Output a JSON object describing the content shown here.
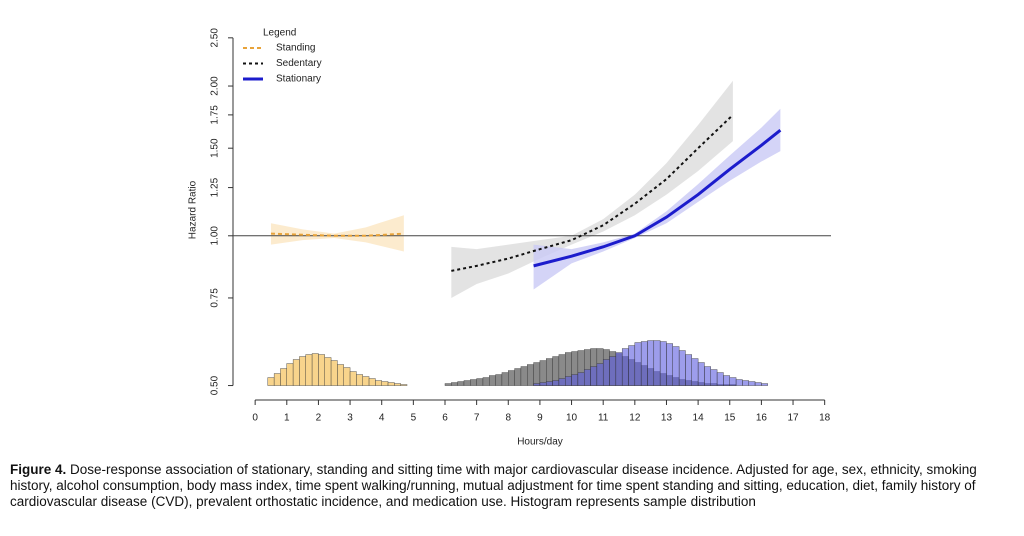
{
  "chart_data": {
    "type": "line",
    "ylabel": "Hazard Ratio",
    "xlabel": "Hours/day",
    "log_y": true,
    "hline": 1.0,
    "xlim": [
      -0.7,
      18.2
    ],
    "ylim": [
      0.472,
      2.69
    ],
    "xticks": [
      0,
      1,
      2,
      3,
      4,
      5,
      6,
      7,
      8,
      9,
      10,
      11,
      12,
      13,
      14,
      15,
      16,
      17,
      18
    ],
    "yticks": [
      {
        "value": 0.5,
        "label": "0.50"
      },
      {
        "value": 0.75,
        "label": "0.75"
      },
      {
        "value": 1.0,
        "label": "1.00"
      },
      {
        "value": 1.25,
        "label": "1.25"
      },
      {
        "value": 1.5,
        "label": "1.50"
      },
      {
        "value": 1.75,
        "label": "1.75"
      },
      {
        "value": 2.0,
        "label": "2.00"
      },
      {
        "value": 2.5,
        "label": "2.50"
      }
    ],
    "legend_title": "Legend",
    "legend_position": "top-left",
    "series": [
      {
        "name": "Standing",
        "color": "#e8a33a",
        "band_color": "#fbe6c2",
        "hist_color": "#f8d48c",
        "dash": "4,3",
        "x": [
          0.5,
          1.5,
          2.5,
          3.5,
          4.7
        ],
        "values": [
          1.01,
          1.005,
          1.0,
          1.0,
          1.01
        ],
        "lower": [
          0.96,
          0.98,
          0.99,
          0.97,
          0.93
        ],
        "upper": [
          1.06,
          1.03,
          1.01,
          1.04,
          1.1
        ],
        "hist_bins": [
          0.4,
          0.6,
          0.8,
          1.0,
          1.2,
          1.4,
          1.6,
          1.8,
          2.0,
          2.2,
          2.4,
          2.6,
          2.8,
          3.0,
          3.2,
          3.4,
          3.6,
          3.8,
          4.0,
          4.2,
          4.4,
          4.6,
          4.8
        ],
        "hist_counts": [
          8,
          12,
          17,
          22,
          26,
          29,
          31,
          32,
          31,
          28,
          25,
          21,
          18,
          14,
          11,
          9,
          7,
          5,
          4,
          3,
          2,
          1
        ]
      },
      {
        "name": "Sedentary",
        "color": "#111111",
        "band_color": "#dcdcdc",
        "hist_color": "#8a8a8a",
        "dash": "3,3",
        "x": [
          6.2,
          7,
          8,
          9,
          10,
          11,
          12,
          13,
          14,
          15.1
        ],
        "values": [
          0.85,
          0.87,
          0.9,
          0.94,
          0.98,
          1.05,
          1.16,
          1.3,
          1.5,
          1.75
        ],
        "lower": [
          0.75,
          0.8,
          0.84,
          0.9,
          0.96,
          1.02,
          1.1,
          1.21,
          1.35,
          1.55
        ],
        "upper": [
          0.95,
          0.94,
          0.96,
          0.98,
          1.0,
          1.08,
          1.21,
          1.4,
          1.67,
          2.05
        ],
        "hist_bins": [
          6.0,
          6.2,
          6.4,
          6.6,
          6.8,
          7.0,
          7.2,
          7.4,
          7.6,
          7.8,
          8.0,
          8.2,
          8.4,
          8.6,
          8.8,
          9.0,
          9.2,
          9.4,
          9.6,
          9.8,
          10.0,
          10.2,
          10.4,
          10.6,
          10.8,
          11.0,
          11.2,
          11.4,
          11.6,
          11.8,
          12.0,
          12.2,
          12.4,
          12.6,
          12.8,
          13.0,
          13.2,
          13.4,
          13.6,
          13.8,
          14.0,
          14.2,
          14.4,
          14.6,
          14.8,
          15.0,
          15.2
        ],
        "hist_counts": [
          2,
          3,
          4,
          5,
          6,
          7,
          8,
          10,
          11,
          13,
          15,
          17,
          19,
          21,
          23,
          25,
          27,
          29,
          31,
          33,
          34,
          35,
          36,
          37,
          37,
          36,
          34,
          32,
          29,
          26,
          23,
          20,
          17,
          14,
          12,
          10,
          8,
          6,
          5,
          4,
          3,
          2,
          2,
          1,
          1,
          1
        ]
      },
      {
        "name": "Stationary",
        "color": "#1c1ccc",
        "band_color": "#c9c9f5",
        "hist_color": "#5c5ce0",
        "dash": "",
        "x": [
          8.8,
          10,
          11,
          12,
          13,
          14,
          15,
          16,
          16.6
        ],
        "values": [
          0.87,
          0.91,
          0.95,
          1.0,
          1.09,
          1.21,
          1.36,
          1.52,
          1.63
        ],
        "lower": [
          0.78,
          0.88,
          0.93,
          0.99,
          1.06,
          1.17,
          1.29,
          1.41,
          1.48
        ],
        "upper": [
          0.96,
          0.94,
          0.97,
          1.01,
          1.12,
          1.27,
          1.45,
          1.65,
          1.8
        ],
        "hist_bins": [
          8.8,
          9.0,
          9.2,
          9.4,
          9.6,
          9.8,
          10.0,
          10.2,
          10.4,
          10.6,
          10.8,
          11.0,
          11.2,
          11.4,
          11.6,
          11.8,
          12.0,
          12.2,
          12.4,
          12.6,
          12.8,
          13.0,
          13.2,
          13.4,
          13.6,
          13.8,
          14.0,
          14.2,
          14.4,
          14.6,
          14.8,
          15.0,
          15.2,
          15.4,
          15.6,
          15.8,
          16.0,
          16.2
        ],
        "hist_counts": [
          2,
          3,
          4,
          5,
          7,
          9,
          11,
          13,
          16,
          19,
          22,
          26,
          29,
          33,
          37,
          40,
          43,
          44,
          45,
          45,
          44,
          42,
          39,
          35,
          31,
          27,
          23,
          19,
          16,
          13,
          10,
          8,
          6,
          5,
          4,
          3,
          2
        ]
      }
    ]
  },
  "caption": {
    "label": "Figure 4.",
    "text": " Dose-response association of stationary, standing and sitting time with major cardiovascular disease incidence. Adjusted for age, sex, ethnicity, smoking history, alcohol consumption, body mass index, time spent walking/running, mutual adjustment for time spent standing and sitting, education, diet, family history of cardiovascular disease (CVD), prevalent orthostatic incidence, and medication use. Histogram represents sample distribution"
  }
}
